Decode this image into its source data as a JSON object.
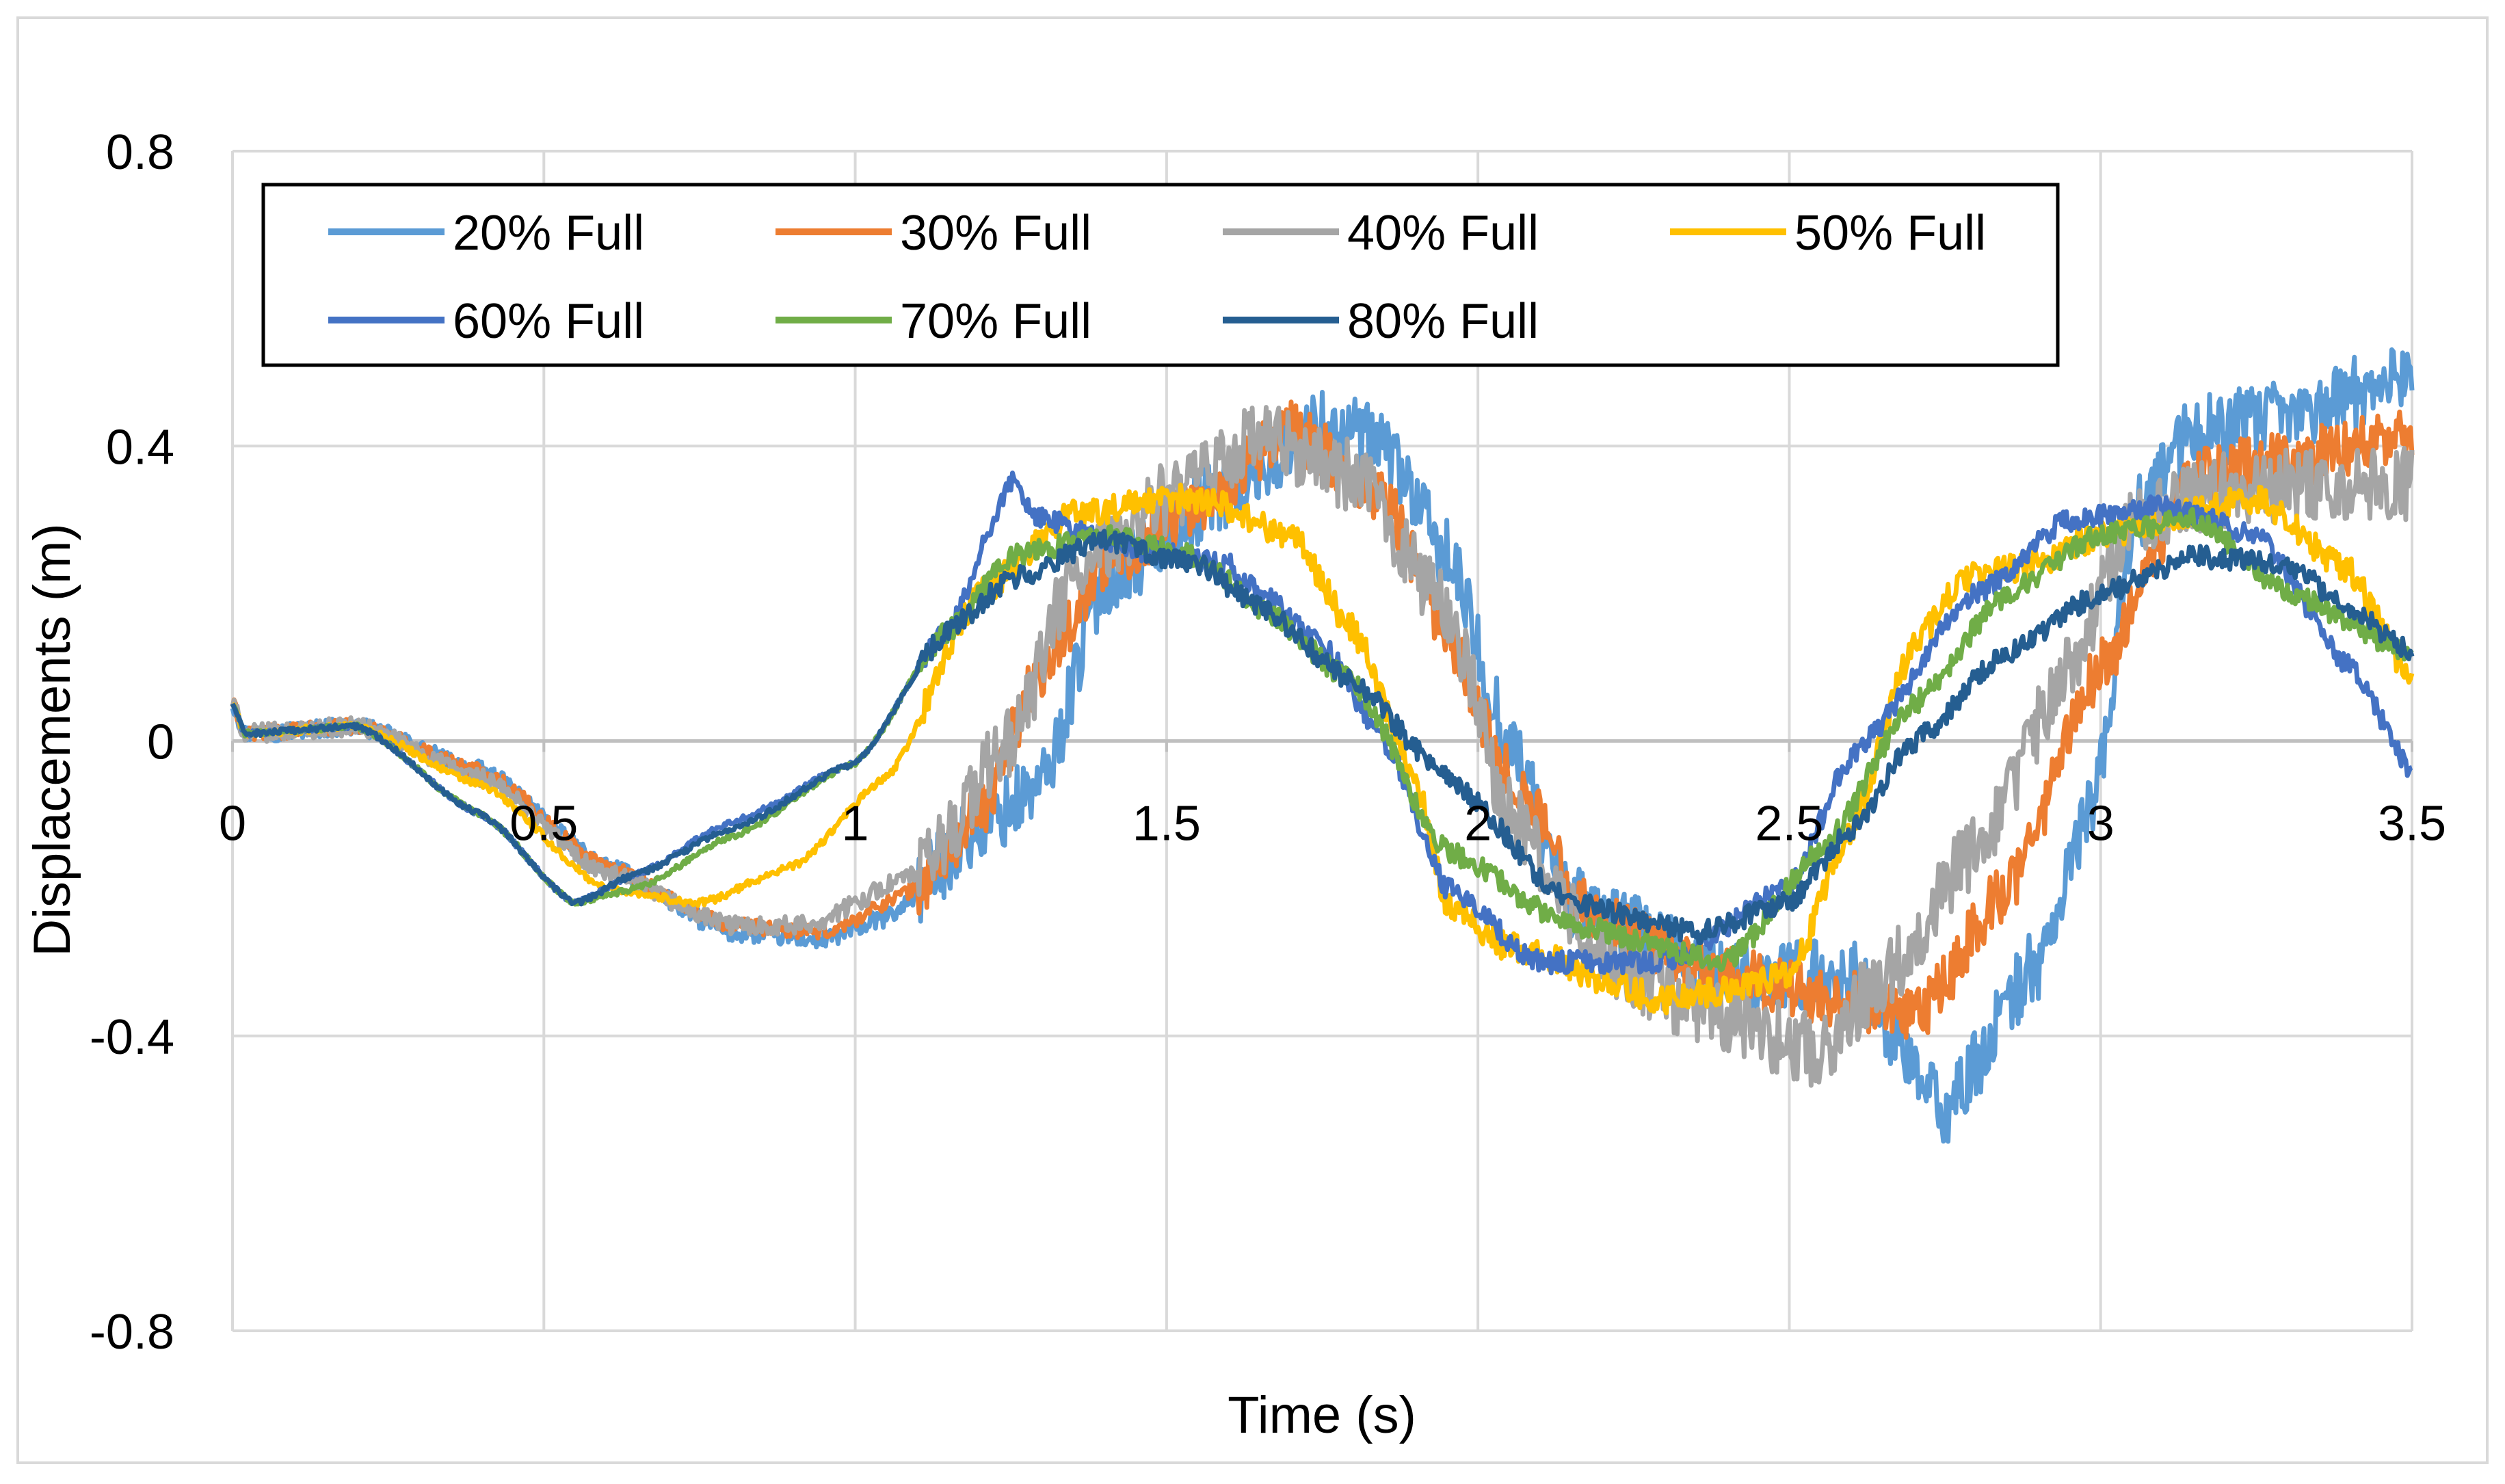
{
  "chart_data": {
    "type": "line",
    "title": "",
    "xlabel": "Time (s)",
    "ylabel": "Displacements (m)",
    "xlim": [
      0,
      3.5
    ],
    "ylim": [
      -0.8,
      0.8
    ],
    "xticks": [
      0,
      0.5,
      1,
      1.5,
      2,
      2.5,
      3,
      3.5
    ],
    "xtick_labels": [
      "0",
      "0.5",
      "1",
      "1.5",
      "2",
      "2.5",
      "3",
      "3.5"
    ],
    "yticks": [
      -0.8,
      -0.4,
      0,
      0.4,
      0.8
    ],
    "ytick_labels": [
      "-0.8",
      "-0.4",
      "0",
      "0.4",
      "0.8"
    ],
    "grid": true,
    "legend_position": "top-left (inside plot area, boxed, 4 columns)",
    "series": [
      {
        "name": "20% Full",
        "color": "#5B9BD5",
        "noise": 0.05,
        "points": [
          [
            0,
            0.05
          ],
          [
            0.02,
            0.01
          ],
          [
            0.2,
            0.02
          ],
          [
            0.4,
            -0.04
          ],
          [
            0.6,
            -0.17
          ],
          [
            0.8,
            -0.26
          ],
          [
            0.95,
            -0.27
          ],
          [
            1.05,
            -0.24
          ],
          [
            1.2,
            -0.12
          ],
          [
            1.3,
            -0.06
          ],
          [
            1.4,
            0.22
          ],
          [
            1.6,
            0.34
          ],
          [
            1.75,
            0.43
          ],
          [
            1.85,
            0.4
          ],
          [
            1.95,
            0.25
          ],
          [
            2.05,
            0.0
          ],
          [
            2.15,
            -0.22
          ],
          [
            2.4,
            -0.32
          ],
          [
            2.6,
            -0.32
          ],
          [
            2.75,
            -0.5
          ],
          [
            2.9,
            -0.3
          ],
          [
            3.0,
            -0.05
          ],
          [
            3.05,
            0.3
          ],
          [
            3.15,
            0.42
          ],
          [
            3.3,
            0.44
          ],
          [
            3.5,
            0.5
          ]
        ]
      },
      {
        "name": "30% Full",
        "color": "#ED7D31",
        "noise": 0.04,
        "points": [
          [
            0,
            0.05
          ],
          [
            0.02,
            0.01
          ],
          [
            0.2,
            0.02
          ],
          [
            0.4,
            -0.04
          ],
          [
            0.6,
            -0.17
          ],
          [
            0.8,
            -0.25
          ],
          [
            0.95,
            -0.26
          ],
          [
            1.1,
            -0.2
          ],
          [
            1.2,
            -0.1
          ],
          [
            1.3,
            0.1
          ],
          [
            1.4,
            0.24
          ],
          [
            1.55,
            0.32
          ],
          [
            1.7,
            0.42
          ],
          [
            1.85,
            0.33
          ],
          [
            1.95,
            0.15
          ],
          [
            2.05,
            -0.05
          ],
          [
            2.2,
            -0.25
          ],
          [
            2.4,
            -0.32
          ],
          [
            2.6,
            -0.35
          ],
          [
            2.7,
            -0.38
          ],
          [
            2.85,
            -0.2
          ],
          [
            3.0,
            0.1
          ],
          [
            3.15,
            0.36
          ],
          [
            3.3,
            0.38
          ],
          [
            3.5,
            0.42
          ]
        ]
      },
      {
        "name": "40% Full",
        "color": "#A5A5A5",
        "noise": 0.05,
        "points": [
          [
            0,
            0.05
          ],
          [
            0.02,
            0.01
          ],
          [
            0.2,
            0.02
          ],
          [
            0.4,
            -0.05
          ],
          [
            0.6,
            -0.18
          ],
          [
            0.8,
            -0.25
          ],
          [
            0.92,
            -0.25
          ],
          [
            1.1,
            -0.18
          ],
          [
            1.25,
            0.0
          ],
          [
            1.35,
            0.22
          ],
          [
            1.5,
            0.33
          ],
          [
            1.65,
            0.41
          ],
          [
            1.8,
            0.36
          ],
          [
            1.95,
            0.18
          ],
          [
            2.05,
            -0.1
          ],
          [
            2.2,
            -0.3
          ],
          [
            2.4,
            -0.38
          ],
          [
            2.55,
            -0.42
          ],
          [
            2.65,
            -0.32
          ],
          [
            2.8,
            -0.15
          ],
          [
            2.95,
            0.1
          ],
          [
            3.05,
            0.3
          ],
          [
            3.2,
            0.34
          ],
          [
            3.35,
            0.35
          ],
          [
            3.5,
            0.35
          ]
        ]
      },
      {
        "name": "50% Full",
        "color": "#FFC000",
        "noise": 0.02,
        "points": [
          [
            0,
            0.05
          ],
          [
            0.02,
            0.01
          ],
          [
            0.2,
            0.02
          ],
          [
            0.4,
            -0.06
          ],
          [
            0.6,
            -0.2
          ],
          [
            0.75,
            -0.22
          ],
          [
            0.9,
            -0.17
          ],
          [
            1.05,
            -0.05
          ],
          [
            1.2,
            0.2
          ],
          [
            1.35,
            0.31
          ],
          [
            1.55,
            0.33
          ],
          [
            1.7,
            0.28
          ],
          [
            1.8,
            0.15
          ],
          [
            1.9,
            -0.05
          ],
          [
            1.95,
            -0.22
          ],
          [
            2.05,
            -0.28
          ],
          [
            2.3,
            -0.35
          ],
          [
            2.5,
            -0.32
          ],
          [
            2.6,
            -0.12
          ],
          [
            2.7,
            0.13
          ],
          [
            2.78,
            0.22
          ],
          [
            2.9,
            0.24
          ],
          [
            3.0,
            0.28
          ],
          [
            3.25,
            0.33
          ],
          [
            3.4,
            0.23
          ],
          [
            3.5,
            0.08
          ]
        ]
      },
      {
        "name": "60% Full",
        "color": "#4472C4",
        "noise": 0.015,
        "points": [
          [
            0,
            0.05
          ],
          [
            0.02,
            0.01
          ],
          [
            0.2,
            0.02
          ],
          [
            0.4,
            -0.1
          ],
          [
            0.55,
            -0.22
          ],
          [
            0.65,
            -0.18
          ],
          [
            0.8,
            -0.11
          ],
          [
            1.0,
            -0.03
          ],
          [
            1.15,
            0.15
          ],
          [
            1.25,
            0.35
          ],
          [
            1.3,
            0.3
          ],
          [
            1.45,
            0.26
          ],
          [
            1.6,
            0.24
          ],
          [
            1.65,
            0.2
          ],
          [
            1.75,
            0.13
          ],
          [
            1.85,
            0.0
          ],
          [
            1.95,
            -0.2
          ],
          [
            2.1,
            -0.3
          ],
          [
            2.3,
            -0.3
          ],
          [
            2.5,
            -0.2
          ],
          [
            2.6,
            -0.02
          ],
          [
            2.8,
            0.2
          ],
          [
            2.95,
            0.3
          ],
          [
            3.1,
            0.32
          ],
          [
            3.25,
            0.28
          ],
          [
            3.4,
            0.1
          ],
          [
            3.5,
            -0.04
          ]
        ]
      },
      {
        "name": "70% Full",
        "color": "#70AD47",
        "noise": 0.015,
        "points": [
          [
            0,
            0.05
          ],
          [
            0.02,
            0.01
          ],
          [
            0.2,
            0.02
          ],
          [
            0.4,
            -0.1
          ],
          [
            0.55,
            -0.22
          ],
          [
            0.65,
            -0.2
          ],
          [
            0.8,
            -0.13
          ],
          [
            1.0,
            -0.03
          ],
          [
            1.15,
            0.15
          ],
          [
            1.25,
            0.25
          ],
          [
            1.4,
            0.28
          ],
          [
            1.55,
            0.25
          ],
          [
            1.65,
            0.18
          ],
          [
            1.8,
            0.08
          ],
          [
            1.95,
            -0.15
          ],
          [
            2.15,
            -0.25
          ],
          [
            2.4,
            -0.3
          ],
          [
            2.55,
            -0.15
          ],
          [
            2.7,
            0.05
          ],
          [
            2.85,
            0.2
          ],
          [
            3.0,
            0.28
          ],
          [
            3.15,
            0.3
          ],
          [
            3.3,
            0.2
          ],
          [
            3.5,
            0.12
          ]
        ]
      },
      {
        "name": "80% Full",
        "color": "#255E91",
        "noise": 0.015,
        "points": [
          [
            0,
            0.05
          ],
          [
            0.02,
            0.01
          ],
          [
            0.2,
            0.02
          ],
          [
            0.4,
            -0.1
          ],
          [
            0.55,
            -0.22
          ],
          [
            0.65,
            -0.18
          ],
          [
            0.8,
            -0.12
          ],
          [
            1.0,
            -0.03
          ],
          [
            1.15,
            0.15
          ],
          [
            1.25,
            0.22
          ],
          [
            1.4,
            0.27
          ],
          [
            1.55,
            0.24
          ],
          [
            1.65,
            0.18
          ],
          [
            1.8,
            0.08
          ],
          [
            1.95,
            -0.05
          ],
          [
            2.15,
            -0.22
          ],
          [
            2.35,
            -0.26
          ],
          [
            2.5,
            -0.22
          ],
          [
            2.6,
            -0.12
          ],
          [
            2.7,
            0.0
          ],
          [
            2.85,
            0.12
          ],
          [
            3.0,
            0.2
          ],
          [
            3.15,
            0.25
          ],
          [
            3.3,
            0.24
          ],
          [
            3.4,
            0.18
          ],
          [
            3.5,
            0.12
          ]
        ]
      }
    ]
  }
}
